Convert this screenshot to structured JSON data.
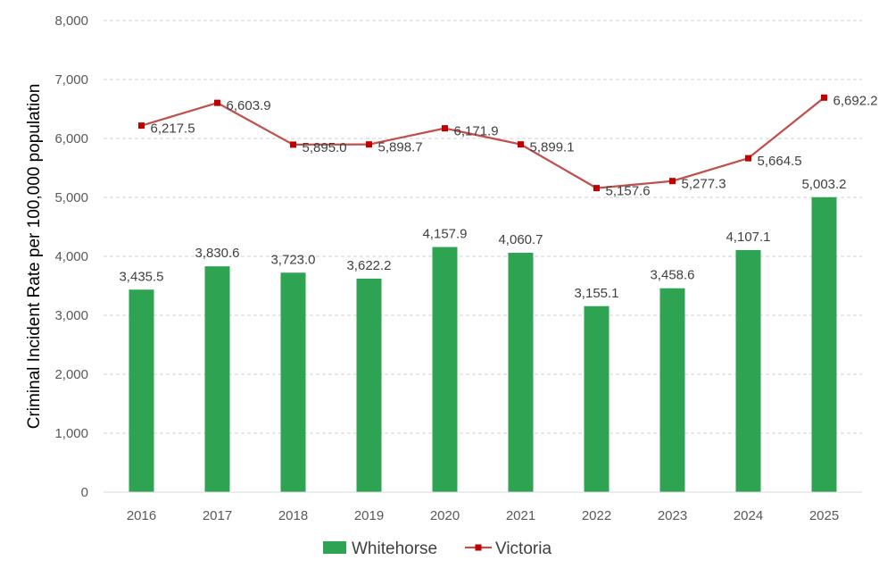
{
  "chart_data": {
    "type": "bar",
    "title": "",
    "xlabel": "",
    "ylabel": "Criminal Incident Rate per 100,000 population",
    "ylim": [
      0,
      8000
    ],
    "yticks": [
      0,
      1000,
      2000,
      3000,
      4000,
      5000,
      6000,
      7000,
      8000
    ],
    "ytick_labels": [
      "0",
      "1,000",
      "2,000",
      "3,000",
      "4,000",
      "5,000",
      "6,000",
      "7,000",
      "8,000"
    ],
    "grid": true,
    "legend_position": "bottom",
    "categories": [
      "2016",
      "2017",
      "2018",
      "2019",
      "2020",
      "2021",
      "2022",
      "2023",
      "2024",
      "2025"
    ],
    "series": [
      {
        "name": "Whitehorse",
        "kind": "bar",
        "color": "#2EA352",
        "values": [
          3435.5,
          3830.6,
          3723.0,
          3622.2,
          4157.9,
          4060.7,
          3155.1,
          3458.6,
          4107.1,
          5003.2
        ],
        "labels": [
          "3,435.5",
          "3,830.6",
          "3,723.0",
          "3,622.2",
          "4,157.9",
          "4,060.7",
          "3,155.1",
          "3,458.6",
          "4,107.1",
          "5,003.2"
        ]
      },
      {
        "name": "Victoria",
        "kind": "line",
        "color": "#C0504D",
        "marker_color": "#C00000",
        "values": [
          6217.5,
          6603.9,
          5895.0,
          5898.7,
          6171.9,
          5899.1,
          5157.6,
          5277.3,
          5664.5,
          6692.2
        ],
        "labels": [
          "6,217.5",
          "6,603.9",
          "5,895.0",
          "5,898.7",
          "6,171.9",
          "5,899.1",
          "5,157.6",
          "5,277.3",
          "5,664.5",
          "6,692.2"
        ]
      }
    ]
  }
}
